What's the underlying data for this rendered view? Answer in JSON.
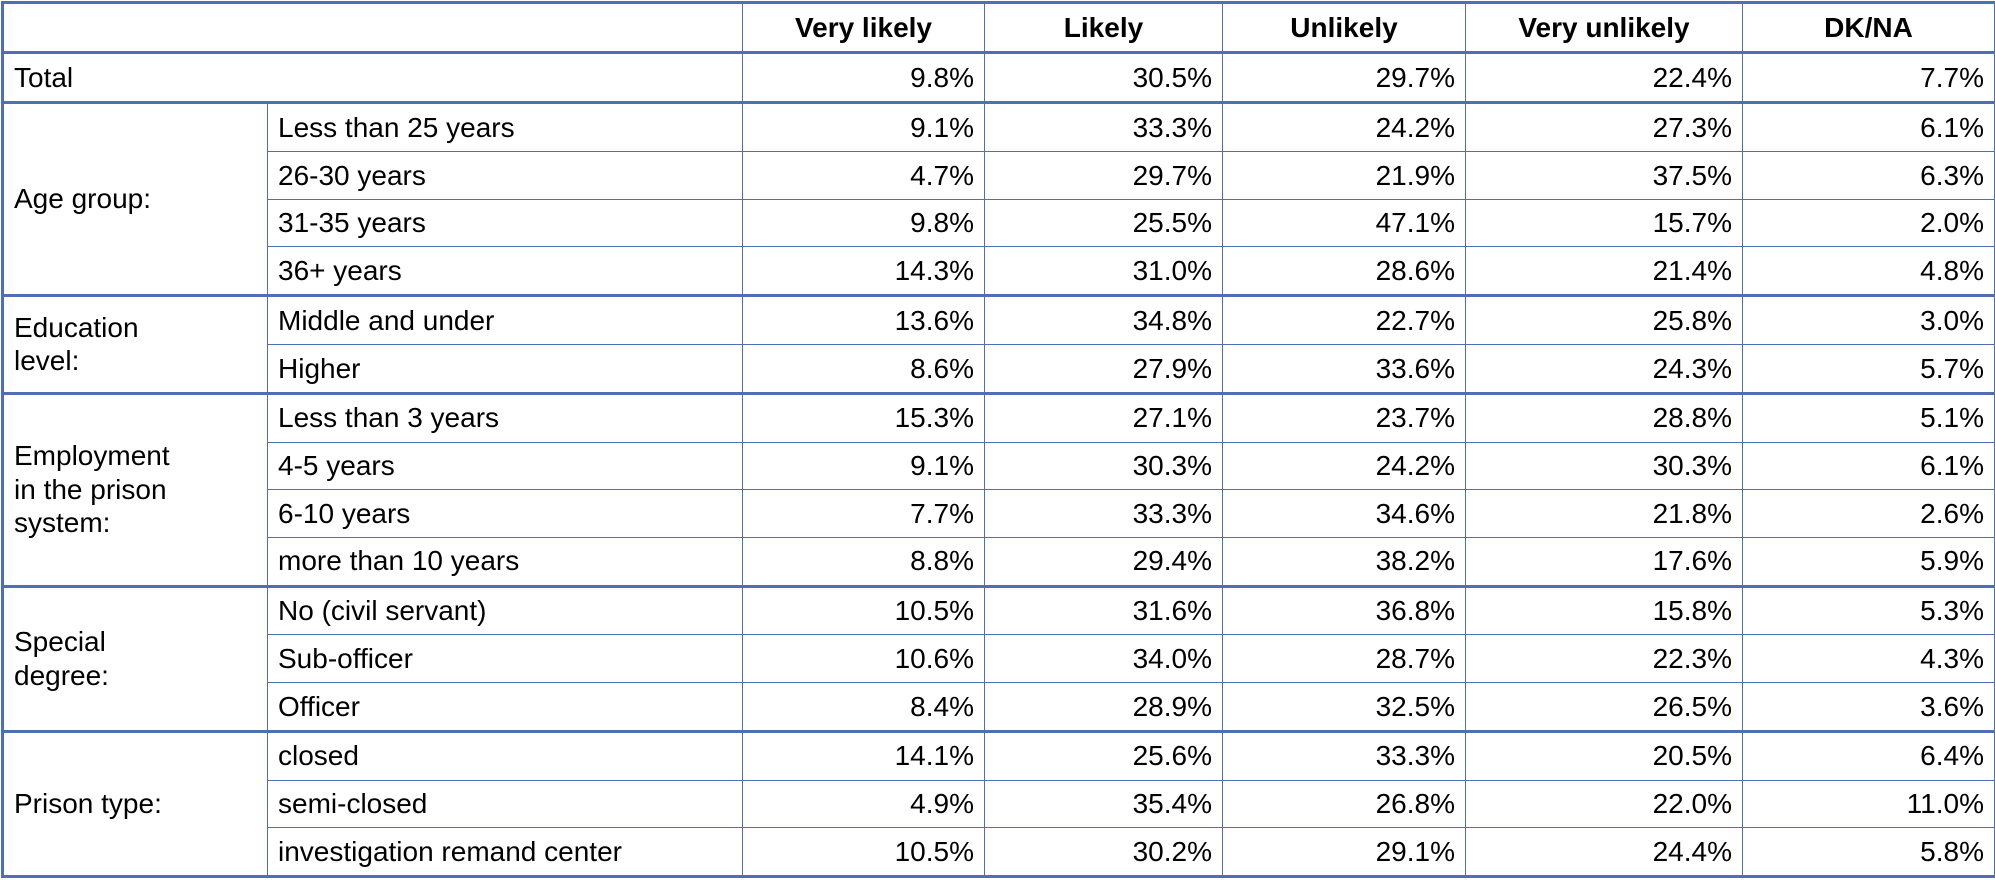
{
  "header": {
    "columns": [
      "Very likely",
      "Likely",
      "Unlikely",
      "Very unlikely",
      "DK/NA"
    ]
  },
  "total": {
    "label": "Total",
    "values": [
      "9.8%",
      "30.5%",
      "29.7%",
      "22.4%",
      "7.7%"
    ]
  },
  "groups": [
    {
      "label": "Age group:",
      "rows": [
        {
          "label": "Less than 25 years",
          "values": [
            "9.1%",
            "33.3%",
            "24.2%",
            "27.3%",
            "6.1%"
          ]
        },
        {
          "label": "26-30 years",
          "values": [
            "4.7%",
            "29.7%",
            "21.9%",
            "37.5%",
            "6.3%"
          ]
        },
        {
          "label": "31-35 years",
          "values": [
            "9.8%",
            "25.5%",
            "47.1%",
            "15.7%",
            "2.0%"
          ]
        },
        {
          "label": "36+ years",
          "values": [
            "14.3%",
            "31.0%",
            "28.6%",
            "21.4%",
            "4.8%"
          ]
        }
      ]
    },
    {
      "label": "Education\nlevel:",
      "rows": [
        {
          "label": "Middle and under",
          "values": [
            "13.6%",
            "34.8%",
            "22.7%",
            "25.8%",
            "3.0%"
          ]
        },
        {
          "label": "Higher",
          "values": [
            "8.6%",
            "27.9%",
            "33.6%",
            "24.3%",
            "5.7%"
          ]
        }
      ]
    },
    {
      "label": "Employment\nin the prison\nsystem:",
      "rows": [
        {
          "label": "Less than 3 years",
          "values": [
            "15.3%",
            "27.1%",
            "23.7%",
            "28.8%",
            "5.1%"
          ]
        },
        {
          "label": "4-5 years",
          "values": [
            "9.1%",
            "30.3%",
            "24.2%",
            "30.3%",
            "6.1%"
          ]
        },
        {
          "label": "6-10 years",
          "values": [
            "7.7%",
            "33.3%",
            "34.6%",
            "21.8%",
            "2.6%"
          ]
        },
        {
          "label": "more than 10 years",
          "values": [
            "8.8%",
            "29.4%",
            "38.2%",
            "17.6%",
            "5.9%"
          ]
        }
      ]
    },
    {
      "label": "Special\ndegree:",
      "rows": [
        {
          "label": "No (civil servant)",
          "values": [
            "10.5%",
            "31.6%",
            "36.8%",
            "15.8%",
            "5.3%"
          ]
        },
        {
          "label": "Sub-officer",
          "values": [
            "10.6%",
            "34.0%",
            "28.7%",
            "22.3%",
            "4.3%"
          ]
        },
        {
          "label": "Officer",
          "values": [
            "8.4%",
            "28.9%",
            "32.5%",
            "26.5%",
            "3.6%"
          ]
        }
      ]
    },
    {
      "label": "Prison type:",
      "rows": [
        {
          "label": "closed",
          "values": [
            "14.1%",
            "25.6%",
            "33.3%",
            "20.5%",
            "6.4%"
          ]
        },
        {
          "label": "semi-closed",
          "values": [
            "4.9%",
            "35.4%",
            "26.8%",
            "22.0%",
            "11.0%"
          ]
        },
        {
          "label": "investigation remand center",
          "values": [
            "10.5%",
            "30.2%",
            "29.1%",
            "24.4%",
            "5.8%"
          ]
        }
      ]
    }
  ]
}
